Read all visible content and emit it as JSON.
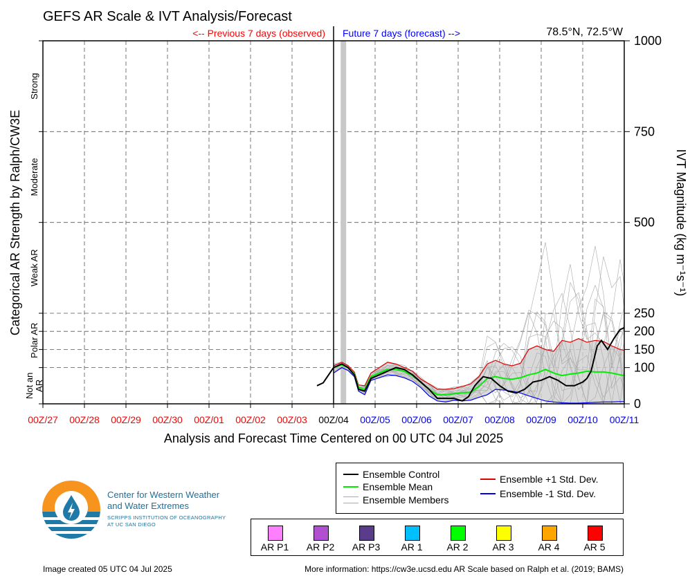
{
  "chart_data": {
    "type": "line",
    "title": "GEFS AR Scale & IVT Analysis/Forecast",
    "subtitle_left": "<-- Previous 7 days (observed)",
    "subtitle_right": "Future 7 days (forecast) -->",
    "location": "78.5°N, 72.5°W",
    "xlabel": "Analysis and Forecast Time Centered on 00 UTC 04 Jul 2025",
    "ylabel_left": "Categorical AR Strength by Ralph/CW3E",
    "ylabel_right": "IVT Magnitude (kg m⁻¹s⁻¹)",
    "x_ticks": [
      "00Z/27",
      "00Z/28",
      "00Z/29",
      "00Z/30",
      "00Z/01",
      "00Z/02",
      "00Z/03",
      "00Z/04",
      "00Z/05",
      "00Z/06",
      "00Z/07",
      "00Z/08",
      "00Z/09",
      "00Z/10",
      "00Z/11"
    ],
    "x_tick_colors": [
      "#ff0000",
      "#ff0000",
      "#ff0000",
      "#ff0000",
      "#ff0000",
      "#ff0000",
      "#ff0000",
      "#000000",
      "#0000ff",
      "#0000ff",
      "#0000ff",
      "#0000ff",
      "#0000ff",
      "#0000ff",
      "#0000ff"
    ],
    "x_range_days": [
      0,
      14
    ],
    "y_ticks": [
      0,
      100,
      150,
      200,
      250,
      500,
      750,
      1000
    ],
    "ylim": [
      0,
      1000
    ],
    "categories": [
      {
        "label": "Not an AR",
        "lines": [
          "Not an",
          "AR"
        ]
      },
      {
        "label": "Polar AR",
        "lines": [
          "Polar AR"
        ]
      },
      {
        "label": "Weak AR",
        "lines": [
          "Weak AR"
        ]
      },
      {
        "label": "Moderate",
        "lines": [
          "Moderate"
        ]
      },
      {
        "label": "Strong",
        "lines": [
          "Strong"
        ]
      }
    ],
    "series": [
      {
        "name": "Ensemble Control",
        "color": "#000000",
        "x": [
          6.6,
          6.75,
          7.0,
          7.2,
          7.35,
          7.5,
          7.6,
          7.75,
          7.9,
          8.1,
          8.3,
          8.5,
          8.7,
          8.9,
          9.1,
          9.3,
          9.5,
          9.7,
          9.9,
          10.1,
          10.25,
          10.4,
          10.6,
          10.8,
          11.0,
          11.2,
          11.4,
          11.6,
          11.8,
          12.0,
          12.2,
          12.4,
          12.6,
          12.8,
          13.0,
          13.1,
          13.2,
          13.35,
          13.45,
          13.6,
          13.75,
          13.9,
          14.0
        ],
        "y": [
          50,
          58,
          100,
          110,
          100,
          80,
          40,
          35,
          70,
          80,
          90,
          100,
          95,
          80,
          60,
          40,
          15,
          15,
          15,
          8,
          20,
          50,
          75,
          70,
          50,
          35,
          30,
          40,
          60,
          65,
          75,
          65,
          50,
          50,
          60,
          70,
          90,
          160,
          175,
          150,
          180,
          205,
          210
        ]
      },
      {
        "name": "Ensemble Mean",
        "color": "#00ee00",
        "x": [
          7.0,
          7.2,
          7.35,
          7.5,
          7.6,
          7.75,
          7.9,
          8.1,
          8.3,
          8.5,
          8.7,
          8.9,
          9.1,
          9.3,
          9.5,
          9.7,
          9.9,
          10.1,
          10.3,
          10.5,
          10.7,
          10.9,
          11.1,
          11.3,
          11.5,
          11.7,
          11.9,
          12.1,
          12.3,
          12.5,
          12.7,
          12.9,
          13.1,
          13.3,
          13.5,
          13.7,
          13.9,
          14.0
        ],
        "y": [
          100,
          108,
          100,
          82,
          45,
          40,
          75,
          85,
          95,
          95,
          90,
          78,
          60,
          40,
          25,
          25,
          28,
          30,
          32,
          48,
          70,
          75,
          70,
          68,
          72,
          80,
          85,
          95,
          85,
          78,
          82,
          85,
          90,
          88,
          88,
          85,
          80,
          78
        ]
      },
      {
        "name": "Ensemble +1 Std. Dev.",
        "color": "#dd0000",
        "x": [
          7.0,
          7.2,
          7.35,
          7.5,
          7.6,
          7.75,
          7.9,
          8.1,
          8.3,
          8.5,
          8.7,
          8.9,
          9.1,
          9.3,
          9.5,
          9.7,
          9.9,
          10.1,
          10.3,
          10.5,
          10.7,
          10.9,
          11.1,
          11.3,
          11.5,
          11.7,
          11.9,
          12.1,
          12.3,
          12.5,
          12.7,
          12.9,
          13.1,
          13.3,
          13.5,
          13.7,
          13.9,
          14.0
        ],
        "y": [
          105,
          115,
          105,
          88,
          52,
          50,
          85,
          100,
          115,
          110,
          100,
          90,
          68,
          55,
          40,
          40,
          42,
          48,
          55,
          75,
          110,
          120,
          110,
          105,
          112,
          150,
          160,
          150,
          145,
          175,
          170,
          180,
          170,
          175,
          172,
          160,
          150,
          148
        ]
      },
      {
        "name": "Ensemble -1 Std. Dev.",
        "color": "#0000ee",
        "x": [
          7.0,
          7.2,
          7.35,
          7.5,
          7.6,
          7.75,
          7.9,
          8.1,
          8.3,
          8.5,
          8.7,
          8.9,
          9.1,
          9.3,
          9.5,
          9.7,
          9.9,
          10.1,
          10.3,
          10.5,
          10.7,
          10.9,
          11.1,
          11.3,
          11.5,
          11.7,
          11.9,
          12.1,
          12.3,
          12.5,
          12.7,
          12.9,
          13.1,
          13.3,
          13.5,
          13.7,
          13.9,
          14.0
        ],
        "y": [
          85,
          100,
          92,
          75,
          35,
          25,
          65,
          72,
          80,
          78,
          72,
          62,
          45,
          22,
          8,
          5,
          10,
          8,
          10,
          18,
          25,
          40,
          38,
          35,
          30,
          22,
          15,
          8,
          5,
          3,
          2,
          2,
          3,
          4,
          5,
          5,
          6,
          6
        ]
      }
    ],
    "legend": {
      "position": "bottom-right",
      "items": [
        {
          "label": "Ensemble Control",
          "color": "#000000"
        },
        {
          "label": "Ensemble Mean",
          "color": "#00ee00"
        },
        {
          "label": "Ensemble Members",
          "color": "#aaaaaa"
        },
        {
          "label": "Ensemble +1 Std. Dev.",
          "color": "#dd0000"
        },
        {
          "label": "Ensemble -1 Std. Dev.",
          "color": "#0000ee"
        }
      ]
    },
    "ar_scale": [
      {
        "label": "AR P1",
        "color": "#ff80ff"
      },
      {
        "label": "AR P2",
        "color": "#b050d0"
      },
      {
        "label": "AR P3",
        "color": "#5a3d8a"
      },
      {
        "label": "AR 1",
        "color": "#00bfff"
      },
      {
        "label": "AR 2",
        "color": "#00ff00"
      },
      {
        "label": "AR 3",
        "color": "#ffff00"
      },
      {
        "label": "AR 4",
        "color": "#ffa500"
      },
      {
        "label": "AR 5",
        "color": "#ff0000"
      }
    ]
  },
  "logo": {
    "line1": "Center for Western Weather",
    "line2": "and Water Extremes",
    "line3": "SCRIPPS INSTITUTION OF OCEANOGRAPHY",
    "line4": "AT UC SAN DIEGO",
    "colors": {
      "orange": "#f7941d",
      "blue": "#1f7aa8"
    }
  },
  "footer": {
    "created": "Image created 05 UTC 04 Jul 2025",
    "more_info": "More information: https://cw3e.ucsd.edu AR Scale based on Ralph et al. (2019; BAMS)"
  }
}
